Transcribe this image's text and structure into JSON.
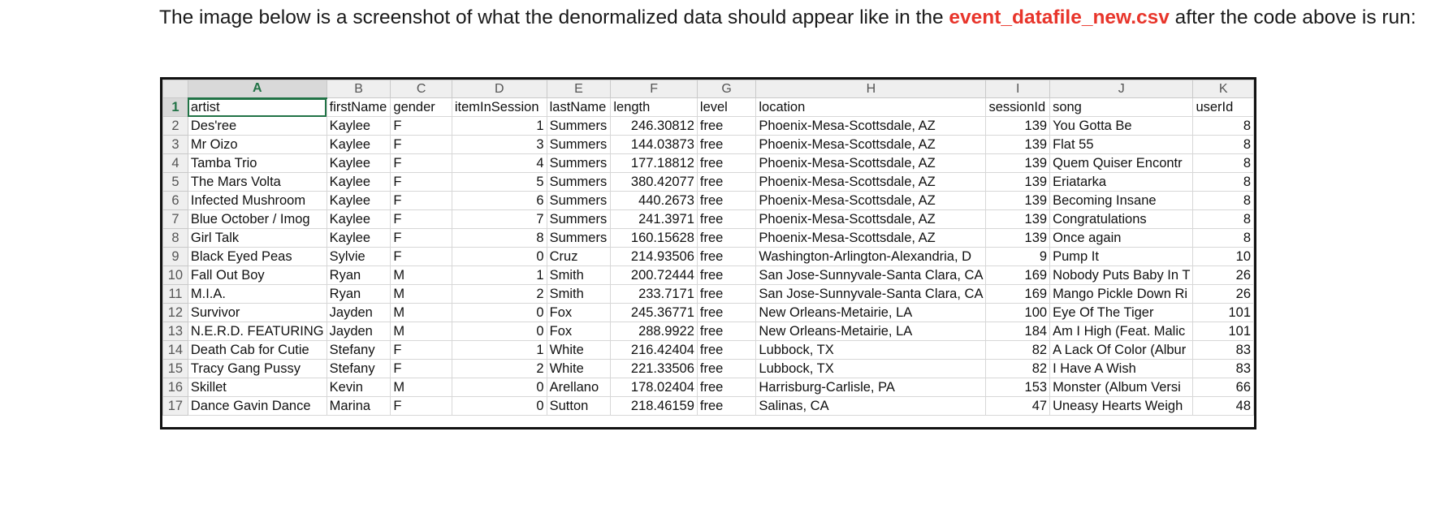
{
  "intro": {
    "text_before": "The image below is a screenshot of what the denormalized data should appear like in the ",
    "filename": "event_datafile_new.csv",
    "text_after": " after the code above is run:"
  },
  "sheet": {
    "column_letters": [
      "A",
      "B",
      "C",
      "D",
      "E",
      "F",
      "G",
      "H",
      "I",
      "J",
      "K"
    ],
    "row_numbers": [
      "1",
      "2",
      "3",
      "4",
      "5",
      "6",
      "7",
      "8",
      "9",
      "10",
      "11",
      "12",
      "13",
      "14",
      "15",
      "16",
      "17"
    ],
    "headers": [
      "artist",
      "firstName",
      "gender",
      "itemInSession",
      "lastName",
      "length",
      "level",
      "location",
      "sessionId",
      "song",
      "userId"
    ],
    "rows": [
      [
        "Des'ree",
        "Kaylee",
        "F",
        "1",
        "Summers",
        "246.30812",
        "free",
        "Phoenix-Mesa-Scottsdale, AZ",
        "139",
        "You Gotta Be",
        "8"
      ],
      [
        "Mr Oizo",
        "Kaylee",
        "F",
        "3",
        "Summers",
        "144.03873",
        "free",
        "Phoenix-Mesa-Scottsdale, AZ",
        "139",
        "Flat 55",
        "8"
      ],
      [
        "Tamba Trio",
        "Kaylee",
        "F",
        "4",
        "Summers",
        "177.18812",
        "free",
        "Phoenix-Mesa-Scottsdale, AZ",
        "139",
        "Quem Quiser Encontr",
        "8"
      ],
      [
        "The Mars Volta",
        "Kaylee",
        "F",
        "5",
        "Summers",
        "380.42077",
        "free",
        "Phoenix-Mesa-Scottsdale, AZ",
        "139",
        "Eriatarka",
        "8"
      ],
      [
        "Infected Mushroom",
        "Kaylee",
        "F",
        "6",
        "Summers",
        "440.2673",
        "free",
        "Phoenix-Mesa-Scottsdale, AZ",
        "139",
        "Becoming Insane",
        "8"
      ],
      [
        "Blue October / Imog",
        "Kaylee",
        "F",
        "7",
        "Summers",
        "241.3971",
        "free",
        "Phoenix-Mesa-Scottsdale, AZ",
        "139",
        "Congratulations",
        "8"
      ],
      [
        "Girl Talk",
        "Kaylee",
        "F",
        "8",
        "Summers",
        "160.15628",
        "free",
        "Phoenix-Mesa-Scottsdale, AZ",
        "139",
        "Once again",
        "8"
      ],
      [
        "Black Eyed Peas",
        "Sylvie",
        "F",
        "0",
        "Cruz",
        "214.93506",
        "free",
        "Washington-Arlington-Alexandria, D",
        "9",
        "Pump It",
        "10"
      ],
      [
        "Fall Out Boy",
        "Ryan",
        "M",
        "1",
        "Smith",
        "200.72444",
        "free",
        "San Jose-Sunnyvale-Santa Clara, CA",
        "169",
        "Nobody Puts Baby In T",
        "26"
      ],
      [
        "M.I.A.",
        "Ryan",
        "M",
        "2",
        "Smith",
        "233.7171",
        "free",
        "San Jose-Sunnyvale-Santa Clara, CA",
        "169",
        "Mango Pickle Down Ri",
        "26"
      ],
      [
        "Survivor",
        "Jayden",
        "M",
        "0",
        "Fox",
        "245.36771",
        "free",
        "New Orleans-Metairie, LA",
        "100",
        "Eye Of The Tiger",
        "101"
      ],
      [
        "N.E.R.D. FEATURING",
        "Jayden",
        "M",
        "0",
        "Fox",
        "288.9922",
        "free",
        "New Orleans-Metairie, LA",
        "184",
        "Am I High (Feat. Malic",
        "101"
      ],
      [
        "Death Cab for Cutie",
        "Stefany",
        "F",
        "1",
        "White",
        "216.42404",
        "free",
        "Lubbock, TX",
        "82",
        "A Lack Of Color (Albur",
        "83"
      ],
      [
        "Tracy Gang Pussy",
        "Stefany",
        "F",
        "2",
        "White",
        "221.33506",
        "free",
        "Lubbock, TX",
        "82",
        "I Have A Wish",
        "83"
      ],
      [
        "Skillet",
        "Kevin",
        "M",
        "0",
        "Arellano",
        "178.02404",
        "free",
        "Harrisburg-Carlisle, PA",
        "153",
        "Monster (Album Versi",
        "66"
      ],
      [
        "Dance Gavin Dance",
        "Marina",
        "F",
        "0",
        "Sutton",
        "218.46159",
        "free",
        "Salinas, CA",
        "47",
        "Uneasy Hearts Weigh",
        "48"
      ]
    ],
    "numeric_columns": [
      3,
      5,
      8,
      10
    ],
    "active_column": "A",
    "active_row": "1",
    "accent_color": "#217346",
    "filename_color": "#e8352b"
  }
}
